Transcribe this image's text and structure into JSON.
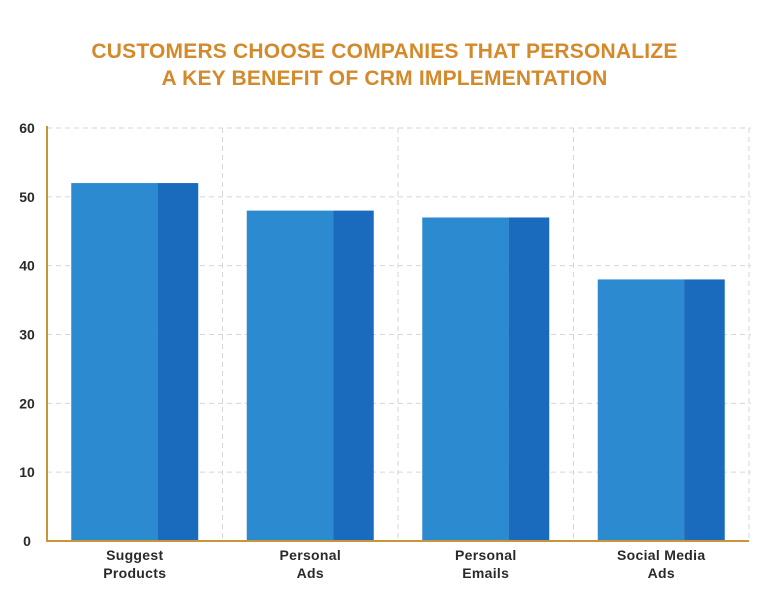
{
  "chart_data": {
    "type": "bar",
    "title": "CUSTOMERS CHOOSE COMPANIES THAT PERSONALIZE",
    "subtitle": "A KEY BENEFIT OF CRM IMPLEMENTATION",
    "xlabel": "",
    "ylabel": "",
    "categories": [
      [
        "Suggest",
        "Products"
      ],
      [
        "Personal",
        "Ads"
      ],
      [
        "Personal",
        "Emails"
      ],
      [
        "Social Media",
        "Ads"
      ]
    ],
    "values": [
      52,
      48,
      47,
      38
    ],
    "ylim": [
      0,
      60
    ],
    "yticks": [
      "0",
      "10",
      "20",
      "30",
      "40",
      "50",
      "60"
    ],
    "grid": true,
    "legend": "none"
  },
  "colors": {
    "title": "#d4892a",
    "bar_face": "#2b8ad0",
    "bar_side": "#1a6bbd",
    "axis": "#c9943a",
    "grid": "#d6d6d6",
    "tick_text": "#2a2a2a"
  }
}
